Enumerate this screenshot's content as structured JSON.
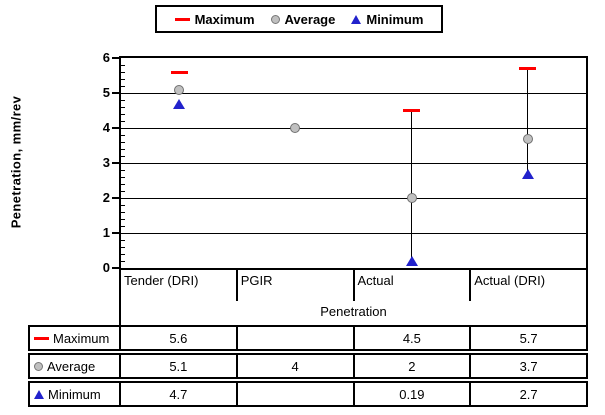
{
  "colors": {
    "maximum": "#ff0000",
    "average_fill": "#c0c0c0",
    "average_border": "#777777",
    "minimum": "#2222cc",
    "axis": "#000000",
    "background": "#ffffff"
  },
  "chart_data": {
    "type": "scatter",
    "title": "",
    "xlabel": "Penetration",
    "ylabel": "Penetration, mm/rev",
    "categories": [
      "Tender (DRI)",
      "PGIR",
      "Actual",
      "Actual (DRI)"
    ],
    "series": [
      {
        "name": "Maximum",
        "marker": "dash",
        "color": "#ff0000",
        "values": [
          "5.6",
          "",
          "4.5",
          "5.7"
        ]
      },
      {
        "name": "Average",
        "marker": "circle",
        "color": "#c0c0c0",
        "values": [
          "5.1",
          "4",
          "2",
          "3.7"
        ]
      },
      {
        "name": "Minimum",
        "marker": "triangle",
        "color": "#2222cc",
        "values": [
          "4.7",
          "",
          "0.19",
          "2.7"
        ]
      }
    ],
    "hilo_lines": [
      false,
      false,
      true,
      true
    ],
    "ylim": [
      0,
      6
    ],
    "y_ticks": [
      0,
      1,
      2,
      3,
      4,
      5,
      6
    ],
    "y_major_step": 1,
    "y_minor_step": 0.2,
    "grid": true,
    "legend_position": "top",
    "data_table_shown": true
  }
}
